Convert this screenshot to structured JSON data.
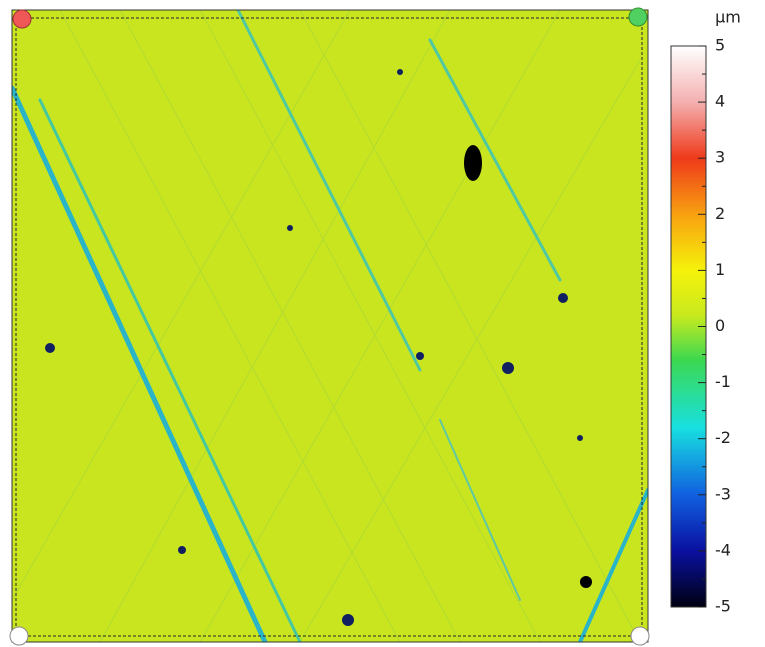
{
  "colorbar": {
    "unit": "µm",
    "range": [
      -5,
      5
    ],
    "ticks": [
      5,
      4,
      3,
      2,
      1,
      0,
      -1,
      -2,
      -3,
      -4,
      -5
    ]
  }
}
